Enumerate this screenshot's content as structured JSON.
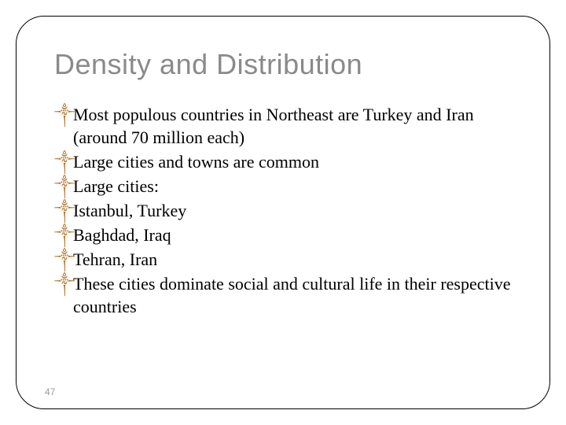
{
  "slide": {
    "title": "Density and Distribution",
    "bullets": [
      "Most populous countries in Northeast are Turkey and Iran (around 70 million each)",
      "Large cities and towns are common",
      "Large cities:",
      "Istanbul, Turkey",
      "Baghdad, Iraq",
      " Tehran, Iran",
      "These cities dominate social and cultural life in their respective countries"
    ],
    "page_number": "47",
    "bullet_marker": "༒",
    "styling": {
      "title_color": "#8a8a8a",
      "title_fontsize": 36,
      "title_fontfamily": "Arial",
      "body_fontsize": 22,
      "body_fontfamily": "Georgia",
      "body_color": "#000000",
      "marker_color": "#b5722a",
      "frame_border_color": "#000000",
      "frame_border_radius": 36,
      "background_color": "#ffffff",
      "page_number_color": "#9a9a9a",
      "page_number_fontsize": 12
    }
  }
}
